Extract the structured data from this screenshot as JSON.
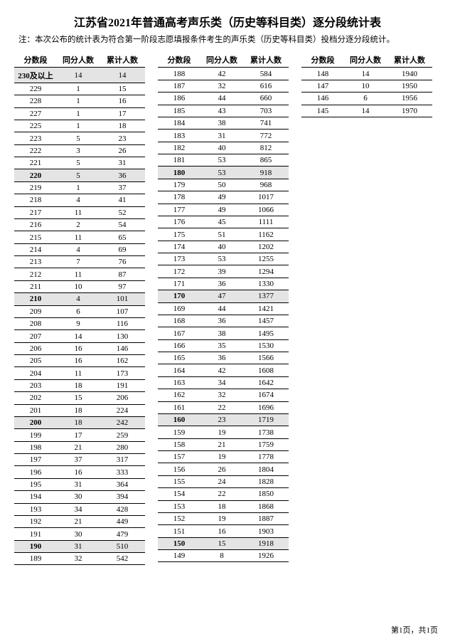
{
  "title": "江苏省2021年普通高考声乐类（历史等科目类）逐分段统计表",
  "note": "注：本次公布的统计表为符合第一阶段志愿填报条件考生的声乐类（历史等科目类）投档分逐分段统计。",
  "headers": {
    "score": "分数段",
    "count": "同分人数",
    "cum": "累计人数"
  },
  "footer": "第1页，共1页",
  "columns": [
    {
      "rows": [
        {
          "score": "230及以上",
          "count": 14,
          "cum": 14,
          "shade": true
        },
        {
          "score": "229",
          "count": 1,
          "cum": 15
        },
        {
          "score": "228",
          "count": 1,
          "cum": 16
        },
        {
          "score": "227",
          "count": 1,
          "cum": 17
        },
        {
          "score": "225",
          "count": 1,
          "cum": 18
        },
        {
          "score": "223",
          "count": 5,
          "cum": 23
        },
        {
          "score": "222",
          "count": 3,
          "cum": 26
        },
        {
          "score": "221",
          "count": 5,
          "cum": 31
        },
        {
          "score": "220",
          "count": 5,
          "cum": 36,
          "shade": true
        },
        {
          "score": "219",
          "count": 1,
          "cum": 37
        },
        {
          "score": "218",
          "count": 4,
          "cum": 41
        },
        {
          "score": "217",
          "count": 11,
          "cum": 52
        },
        {
          "score": "216",
          "count": 2,
          "cum": 54
        },
        {
          "score": "215",
          "count": 11,
          "cum": 65
        },
        {
          "score": "214",
          "count": 4,
          "cum": 69
        },
        {
          "score": "213",
          "count": 7,
          "cum": 76
        },
        {
          "score": "212",
          "count": 11,
          "cum": 87
        },
        {
          "score": "211",
          "count": 10,
          "cum": 97
        },
        {
          "score": "210",
          "count": 4,
          "cum": 101,
          "shade": true
        },
        {
          "score": "209",
          "count": 6,
          "cum": 107
        },
        {
          "score": "208",
          "count": 9,
          "cum": 116
        },
        {
          "score": "207",
          "count": 14,
          "cum": 130
        },
        {
          "score": "206",
          "count": 16,
          "cum": 146
        },
        {
          "score": "205",
          "count": 16,
          "cum": 162
        },
        {
          "score": "204",
          "count": 11,
          "cum": 173
        },
        {
          "score": "203",
          "count": 18,
          "cum": 191
        },
        {
          "score": "202",
          "count": 15,
          "cum": 206
        },
        {
          "score": "201",
          "count": 18,
          "cum": 224
        },
        {
          "score": "200",
          "count": 18,
          "cum": 242,
          "shade": true
        },
        {
          "score": "199",
          "count": 17,
          "cum": 259
        },
        {
          "score": "198",
          "count": 21,
          "cum": 280
        },
        {
          "score": "197",
          "count": 37,
          "cum": 317
        },
        {
          "score": "196",
          "count": 16,
          "cum": 333
        },
        {
          "score": "195",
          "count": 31,
          "cum": 364
        },
        {
          "score": "194",
          "count": 30,
          "cum": 394
        },
        {
          "score": "193",
          "count": 34,
          "cum": 428
        },
        {
          "score": "192",
          "count": 21,
          "cum": 449
        },
        {
          "score": "191",
          "count": 30,
          "cum": 479
        },
        {
          "score": "190",
          "count": 31,
          "cum": 510,
          "shade": true
        },
        {
          "score": "189",
          "count": 32,
          "cum": 542
        }
      ]
    },
    {
      "rows": [
        {
          "score": "188",
          "count": 42,
          "cum": 584
        },
        {
          "score": "187",
          "count": 32,
          "cum": 616
        },
        {
          "score": "186",
          "count": 44,
          "cum": 660
        },
        {
          "score": "185",
          "count": 43,
          "cum": 703
        },
        {
          "score": "184",
          "count": 38,
          "cum": 741
        },
        {
          "score": "183",
          "count": 31,
          "cum": 772
        },
        {
          "score": "182",
          "count": 40,
          "cum": 812
        },
        {
          "score": "181",
          "count": 53,
          "cum": 865
        },
        {
          "score": "180",
          "count": 53,
          "cum": 918,
          "shade": true
        },
        {
          "score": "179",
          "count": 50,
          "cum": 968
        },
        {
          "score": "178",
          "count": 49,
          "cum": 1017
        },
        {
          "score": "177",
          "count": 49,
          "cum": 1066
        },
        {
          "score": "176",
          "count": 45,
          "cum": 1111
        },
        {
          "score": "175",
          "count": 51,
          "cum": 1162
        },
        {
          "score": "174",
          "count": 40,
          "cum": 1202
        },
        {
          "score": "173",
          "count": 53,
          "cum": 1255
        },
        {
          "score": "172",
          "count": 39,
          "cum": 1294
        },
        {
          "score": "171",
          "count": 36,
          "cum": 1330
        },
        {
          "score": "170",
          "count": 47,
          "cum": 1377,
          "shade": true
        },
        {
          "score": "169",
          "count": 44,
          "cum": 1421
        },
        {
          "score": "168",
          "count": 36,
          "cum": 1457
        },
        {
          "score": "167",
          "count": 38,
          "cum": 1495
        },
        {
          "score": "166",
          "count": 35,
          "cum": 1530
        },
        {
          "score": "165",
          "count": 36,
          "cum": 1566
        },
        {
          "score": "164",
          "count": 42,
          "cum": 1608
        },
        {
          "score": "163",
          "count": 34,
          "cum": 1642
        },
        {
          "score": "162",
          "count": 32,
          "cum": 1674
        },
        {
          "score": "161",
          "count": 22,
          "cum": 1696
        },
        {
          "score": "160",
          "count": 23,
          "cum": 1719,
          "shade": true
        },
        {
          "score": "159",
          "count": 19,
          "cum": 1738
        },
        {
          "score": "158",
          "count": 21,
          "cum": 1759
        },
        {
          "score": "157",
          "count": 19,
          "cum": 1778
        },
        {
          "score": "156",
          "count": 26,
          "cum": 1804
        },
        {
          "score": "155",
          "count": 24,
          "cum": 1828
        },
        {
          "score": "154",
          "count": 22,
          "cum": 1850
        },
        {
          "score": "153",
          "count": 18,
          "cum": 1868
        },
        {
          "score": "152",
          "count": 19,
          "cum": 1887
        },
        {
          "score": "151",
          "count": 16,
          "cum": 1903
        },
        {
          "score": "150",
          "count": 15,
          "cum": 1918,
          "shade": true
        },
        {
          "score": "149",
          "count": 8,
          "cum": 1926
        }
      ]
    },
    {
      "rows": [
        {
          "score": "148",
          "count": 14,
          "cum": 1940
        },
        {
          "score": "147",
          "count": 10,
          "cum": 1950
        },
        {
          "score": "146",
          "count": 6,
          "cum": 1956
        },
        {
          "score": "145",
          "count": 14,
          "cum": 1970
        }
      ]
    }
  ]
}
